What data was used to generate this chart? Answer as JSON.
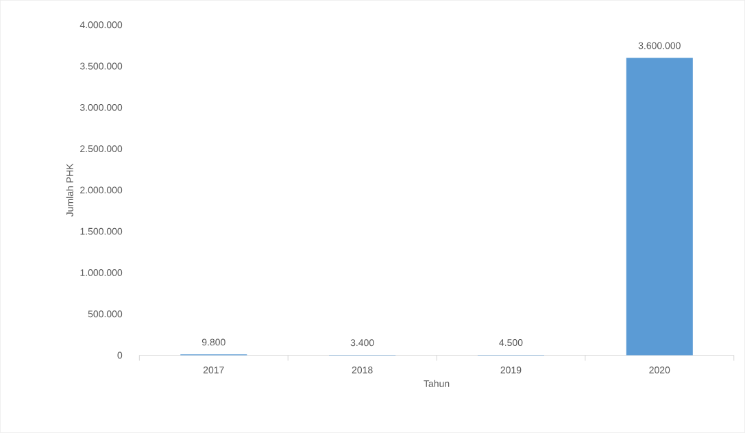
{
  "chart_data": {
    "type": "bar",
    "xlabel": "Tahun",
    "ylabel": "Jumlah PHK",
    "categories": [
      "2017",
      "2018",
      "2019",
      "2020"
    ],
    "values": [
      9800,
      3400,
      4500,
      3600000
    ],
    "value_labels": [
      "9.800",
      "3.400",
      "4.500",
      "3.600.000"
    ],
    "color": "#5b9bd5",
    "ylim": [
      0,
      4000000
    ],
    "yticks": [
      0,
      {
        "value": 500000,
        "label": "500.000"
      },
      {
        "value": 1000000,
        "label": "1.000.000"
      },
      {
        "value": 1500000,
        "label": "1.500.000"
      },
      {
        "value": 2000000,
        "label": "2.000.000"
      },
      {
        "value": 2500000,
        "label": "2.500.000"
      },
      {
        "value": 3000000,
        "label": "3.000.000"
      },
      {
        "value": 3500000,
        "label": "3.500.000"
      },
      {
        "value": 4000000,
        "label": "4.000.000"
      }
    ],
    "grid": false
  }
}
